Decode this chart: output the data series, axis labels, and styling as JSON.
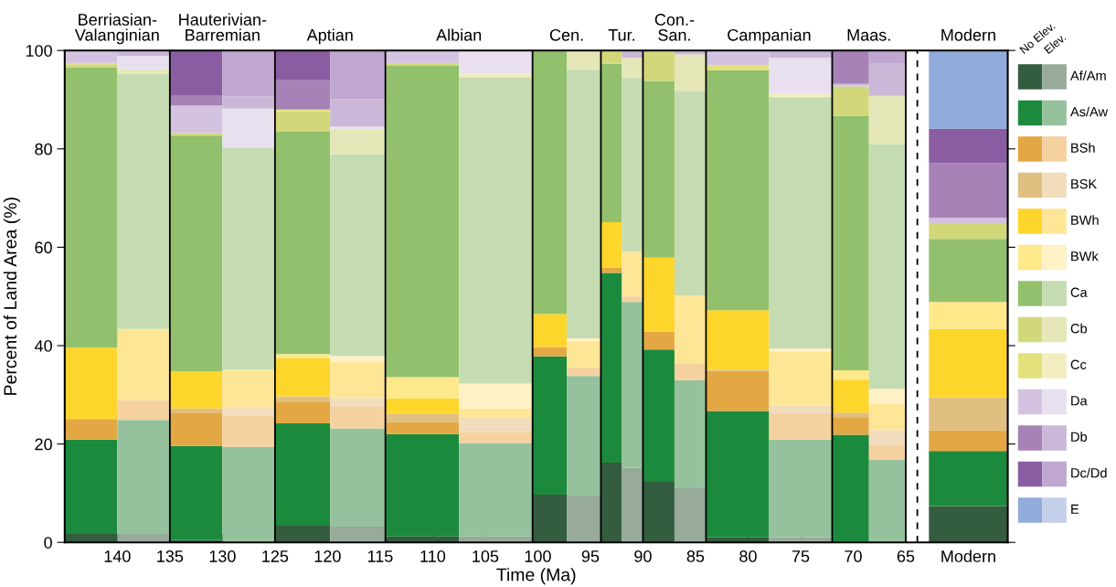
{
  "chart_data": {
    "type": "bar",
    "stacked": true,
    "xlabel": "Time (Ma)",
    "ylabel": "Percent of Land Area (%)",
    "x": [
      142.5,
      137.5,
      132.5,
      127.5,
      122.375,
      117.125,
      111.0,
      104.0,
      98.875,
      95.625,
      93,
      91,
      88.5,
      85.5,
      81,
      75,
      70.25,
      66.75,
      59.05
    ],
    "xlim": [
      145,
      55.3
    ],
    "ylim": [
      0,
      100
    ],
    "yticks": [
      0,
      20,
      40,
      60,
      80,
      100
    ],
    "xticks": [
      140,
      135,
      130,
      125,
      120,
      115,
      110,
      105,
      100,
      95,
      90,
      85,
      80,
      75,
      70,
      65,
      {
        "value": 59.05,
        "label": "Modern"
      }
    ],
    "ref_lines": [
      {
        "axis": "x",
        "value": 135,
        "color": "#000000",
        "line_style": "solid"
      },
      {
        "axis": "x",
        "value": 125,
        "color": "#000000",
        "line_style": "solid"
      },
      {
        "axis": "x",
        "value": 114.5,
        "color": "#000000",
        "line_style": "solid"
      },
      {
        "axis": "x",
        "value": 100.5,
        "color": "#000000",
        "line_style": "solid"
      },
      {
        "axis": "x",
        "value": 94,
        "color": "#000000",
        "line_style": "solid"
      },
      {
        "axis": "x",
        "value": 90,
        "color": "#000000",
        "line_style": "solid"
      },
      {
        "axis": "x",
        "value": 84,
        "color": "#000000",
        "line_style": "solid"
      },
      {
        "axis": "x",
        "value": 72,
        "color": "#000000",
        "line_style": "solid"
      },
      {
        "axis": "x",
        "value": 65,
        "color": "#000000",
        "line_style": "solid"
      },
      {
        "axis": "x",
        "value": 63.9,
        "color": "#000000",
        "line_style": "dashed"
      }
    ],
    "annotations": [
      "No Elev.",
      "Elev.",
      {
        "text": "Berriasian-\nValanginian",
        "x": 140,
        "y": 100
      },
      {
        "text": "Hauterivian-\nBarremian",
        "x": 130,
        "y": 100
      },
      {
        "text": "Aptian",
        "x": 119.75,
        "y": 100
      },
      {
        "text": "Albian",
        "x": 107.5,
        "y": 100
      },
      {
        "text": "Cen.",
        "x": 97.25,
        "y": 100
      },
      {
        "text": "Tur.",
        "x": 92,
        "y": 100
      },
      {
        "text": "Con.-\nSan.",
        "x": 87,
        "y": 100
      },
      {
        "text": "Campanian",
        "x": 78,
        "y": 100
      },
      {
        "text": "Maas.",
        "x": 68.5,
        "y": 100
      },
      {
        "text": "Modern",
        "x": 59.05,
        "y": 100
      }
    ],
    "legend": "right",
    "grid": false,
    "series": [
      {
        "name": "Af/Am",
        "colors": [
          "#345c3e",
          "#98ab9b",
          "#345c3e",
          "#98ab9b",
          "#345c3e",
          "#98ab9b",
          "#345c3e",
          "#98ab9b",
          "#345c3e",
          "#98ab9b",
          "#345c3e",
          "#98ab9b",
          "#345c3e",
          "#98ab9b",
          "#345c3e",
          "#98ab9b",
          "#345c3e",
          "#98ab9b",
          "#345c3e"
        ],
        "values": [
          1.7,
          1.7,
          0.5,
          null,
          3.4,
          3.2,
          1.2,
          1.2,
          9.7,
          9.5,
          16.2,
          15.2,
          12.3,
          11.0,
          1.0,
          1.0,
          0,
          0,
          7.4
        ]
      },
      {
        "name": "As/Aw",
        "colors": [
          "#1c8a3c",
          "#95c29c",
          "#1c8a3c",
          "#95c29c",
          "#1c8a3c",
          "#95c29c",
          "#1c8a3c",
          "#95c29c",
          "#1c8a3c",
          "#95c29c",
          "#1c8a3c",
          "#95c29c",
          "#1c8a3c",
          "#95c29c",
          "#1c8a3c",
          "#95c29c",
          "#1c8a3c",
          "#95c29c",
          "#1c8a3c"
        ],
        "values": [
          19.2,
          23.2,
          19.1,
          19.4,
          20.8,
          20.0,
          20.8,
          19.0,
          28.1,
          24.3,
          38.6,
          33.7,
          26.9,
          22.0,
          25.7,
          19.9,
          21.9,
          16.8,
          11.2
        ]
      },
      {
        "name": "BSh",
        "colors": [
          "#e3a844",
          "#f5d1a0",
          "#e3a844",
          "#f5d1a0",
          "#e3a844",
          "#f5d1a0",
          "#e3a844",
          "#f5d1a0",
          "#e3a844",
          "#f5d1a0",
          "#e3a844",
          "#f5d1a0",
          "#e3a844",
          "#f5d1a0",
          "#e3a844",
          "#f5d1a0",
          "#e3a844",
          "#f5d1a0",
          "#e3a844"
        ],
        "values": [
          4.2,
          4.0,
          6.8,
          6.4,
          4.4,
          4.5,
          2.5,
          2.2,
          1.9,
          1.7,
          1.1,
          1.1,
          3.7,
          3.3,
          8.2,
          5.4,
          3.4,
          3.0,
          4.2
        ]
      },
      {
        "name": "BSK",
        "colors": [
          "#e0bf80",
          "#f1dcbb",
          "#e0bf80",
          "#f1dcbb",
          "#e0bf80",
          "#f1dcbb",
          "#e0bf80",
          "#f1dcbb",
          "#e0bf80",
          "#f1dcbb",
          "#e0bf80",
          "#f1dcbb",
          "#e0bf80",
          "#f1dcbb",
          "#e0bf80",
          "#f1dcbb",
          "#e0bf80",
          "#f1dcbb",
          "#e0bf80"
        ],
        "values": [
          0,
          0,
          0.8,
          1.7,
          1.1,
          1.6,
          1.7,
          2.9,
          0,
          0,
          0,
          0,
          0,
          0,
          0.2,
          1.5,
          1.1,
          3.0,
          6.7
        ]
      },
      {
        "name": "BWh",
        "colors": [
          "#fed52b",
          "#fee697",
          "#fed52b",
          "#fee697",
          "#fed52b",
          "#fee697",
          "#fed52b",
          "#fee697",
          "#fed52b",
          "#fee697",
          "#fed52b",
          "#fee697",
          "#fed52b",
          "#fee697",
          "#fed52b",
          "#fee697",
          "#fed52b",
          "#fee697",
          "#fed52b"
        ],
        "values": [
          14.5,
          14.5,
          7.6,
          7.6,
          7.8,
          7.4,
          3.0,
          1.9,
          6.7,
          5.4,
          9.2,
          9.1,
          15.0,
          13.9,
          12.1,
          10.9,
          6.7,
          5.4,
          13.9
        ]
      },
      {
        "name": "BWk",
        "colors": [
          "#fde98a",
          "#fef1c5",
          "#fde98a",
          "#fef1c5",
          "#fde98a",
          "#fef1c5",
          "#fde98a",
          "#fef1c5",
          "#fde98a",
          "#fef1c5",
          "#fde98a",
          "#fef1c5",
          "#fde98a",
          "#fef1c5",
          "#fde98a",
          "#fef1c5",
          "#fde98a",
          "#fef1c5",
          "#fde98a"
        ],
        "values": [
          0,
          0,
          0,
          0,
          0.8,
          1.2,
          4.4,
          5.1,
          0,
          0.6,
          0,
          0,
          0,
          0,
          0,
          0.7,
          1.9,
          3.0,
          5.5
        ]
      },
      {
        "name": "Ca",
        "colors": [
          "#93c06d",
          "#c5dcb2",
          "#93c06d",
          "#c5dcb2",
          "#93c06d",
          "#c5dcb2",
          "#93c06d",
          "#c5dcb2",
          "#93c06d",
          "#c5dcb2",
          "#93c06d",
          "#c5dcb2",
          "#93c06d",
          "#c5dcb2",
          "#93c06d",
          "#c5dcb2",
          "#93c06d",
          "#c5dcb2",
          "#93c06d"
        ],
        "values": [
          57.0,
          51.9,
          47.9,
          45.2,
          45.2,
          41.0,
          63.3,
          62.3,
          53.6,
          54.6,
          32.2,
          35.3,
          35.9,
          41.6,
          48.8,
          51.1,
          51.7,
          49.8,
          12.8
        ]
      },
      {
        "name": "Cb",
        "colors": [
          "#d2d87a",
          "#e5e7b8",
          "#d2d87a",
          "#e5e7b8",
          "#d2d87a",
          "#e5e7b8",
          "#d2d87a",
          "#e5e7b8",
          "#d2d87a",
          "#e5e7b8",
          "#d2d87a",
          "#e5e7b8",
          "#d2d87a",
          "#e5e7b8",
          "#d2d87a",
          "#e5e7b8",
          "#d2d87a",
          "#e5e7b8",
          "#d2d87a"
        ],
        "values": [
          0.6,
          0.9,
          0.5,
          0,
          4.2,
          5.1,
          0.6,
          0,
          0,
          3.9,
          2.7,
          4.1,
          6.2,
          7.4,
          0,
          0,
          6.0,
          9.8,
          3.0
        ]
      },
      {
        "name": "Cc",
        "colors": [
          "#e2e07b",
          "#f2eec0",
          "#e2e07b",
          "#f2eec0",
          "#e2e07b",
          "#f2eec0",
          "#e2e07b",
          "#f2eec0",
          "#e2e07b",
          "#f2eec0",
          "#e2e07b",
          "#f2eec0",
          "#e2e07b",
          "#f2eec0",
          "#e2e07b",
          "#f2eec0",
          "#e2e07b",
          "#f2eec0",
          "#e2e07b"
        ],
        "values": [
          0.3,
          0,
          0,
          0,
          0.3,
          0,
          0,
          0.8,
          0,
          0,
          0,
          0,
          0,
          0,
          1.0,
          0.7,
          0,
          0,
          0
        ]
      },
      {
        "name": "Da",
        "colors": [
          "#d3c3e0",
          "#e8e0ef",
          "#d3c3e0",
          "#e8e0ef",
          "#d3c3e0",
          "#e8e0ef",
          "#d3c3e0",
          "#e8e0ef",
          "#d3c3e0",
          "#e8e0ef",
          "#d3c3e0",
          "#e8e0ef",
          "#d3c3e0",
          "#e8e0ef",
          "#d3c3e0",
          "#e8e0ef",
          "#d3c3e0",
          "#e8e0ef",
          "#d3c3e0"
        ],
        "values": [
          2.5,
          2.7,
          5.6,
          7.9,
          0,
          0.5,
          2.5,
          4.6,
          0,
          0,
          0,
          0,
          0,
          0,
          3.0,
          7.3,
          0.5,
          0,
          1.3
        ]
      },
      {
        "name": "Db",
        "colors": [
          "#a782b6",
          "#cbb7d7",
          "#a782b6",
          "#cbb7d7",
          "#a782b6",
          "#cbb7d7",
          "#a782b6",
          "#cbb7d7",
          "#a782b6",
          "#cbb7d7",
          "#a782b6",
          "#cbb7d7",
          "#a782b6",
          "#cbb7d7",
          "#a782b6",
          "#cbb7d7",
          "#a782b6",
          "#cbb7d7",
          "#a782b6"
        ],
        "values": [
          0,
          1.1,
          2.0,
          2.5,
          6.1,
          5.6,
          0,
          0,
          0,
          0,
          0,
          1.5,
          0,
          0.8,
          0,
          1.5,
          6.8,
          6.5,
          11.1
        ]
      },
      {
        "name": "Dc/Dd",
        "colors": [
          "#8a5da2",
          "#bfa7cf",
          "#8a5da2",
          "#bfa7cf",
          "#8a5da2",
          "#bfa7cf",
          "#8a5da2",
          "#bfa7cf",
          "#8a5da2",
          "#bfa7cf",
          "#8a5da2",
          "#bfa7cf",
          "#8a5da2",
          "#bfa7cf",
          "#8a5da2",
          "#bfa7cf",
          "#8a5da2",
          "#bfa7cf",
          "#8a5da2"
        ],
        "values": [
          0,
          0,
          9.4,
          9.3,
          5.9,
          9.9,
          0,
          0,
          0,
          0,
          0,
          0,
          0,
          0,
          0,
          0,
          0,
          2.7,
          7.0
        ]
      },
      {
        "name": "E",
        "colors": [
          "#91abda",
          "#c4d0ea",
          "#91abda",
          "#c4d0ea",
          "#91abda",
          "#c4d0ea",
          "#91abda",
          "#c4d0ea",
          "#91abda",
          "#c4d0ea",
          "#91abda",
          "#c4d0ea",
          "#91abda",
          "#c4d0ea",
          "#91abda",
          "#c4d0ea",
          "#91abda",
          "#c4d0ea",
          "#91abda"
        ],
        "values": [
          0,
          0,
          0,
          0,
          0,
          0,
          0,
          0,
          0,
          0,
          0,
          0,
          0,
          0,
          0,
          0,
          0,
          0,
          15.9
        ]
      }
    ]
  }
}
